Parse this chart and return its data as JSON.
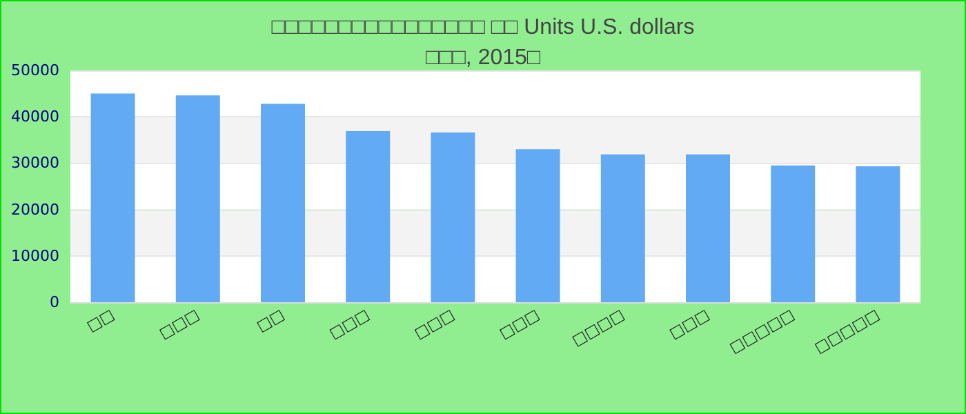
{
  "chart_data": {
    "type": "bar",
    "title": "□□□□□□□□□□□□□□□□ □□ Units U.S. dollars\n□□□, 2015□",
    "categories": [
      "□□",
      "□□□",
      "□□",
      "□□□",
      "□□□",
      "□□□",
      "□□□□",
      "□□□",
      "□□□□□",
      "□□□□□"
    ],
    "values": [
      45000,
      44600,
      42800,
      36900,
      36600,
      33000,
      31900,
      31900,
      29500,
      29300
    ],
    "color": "#63aaf5",
    "ylim": [
      0,
      50000
    ],
    "yticks": [
      0,
      10000,
      20000,
      30000,
      40000,
      50000
    ],
    "grid": true
  }
}
